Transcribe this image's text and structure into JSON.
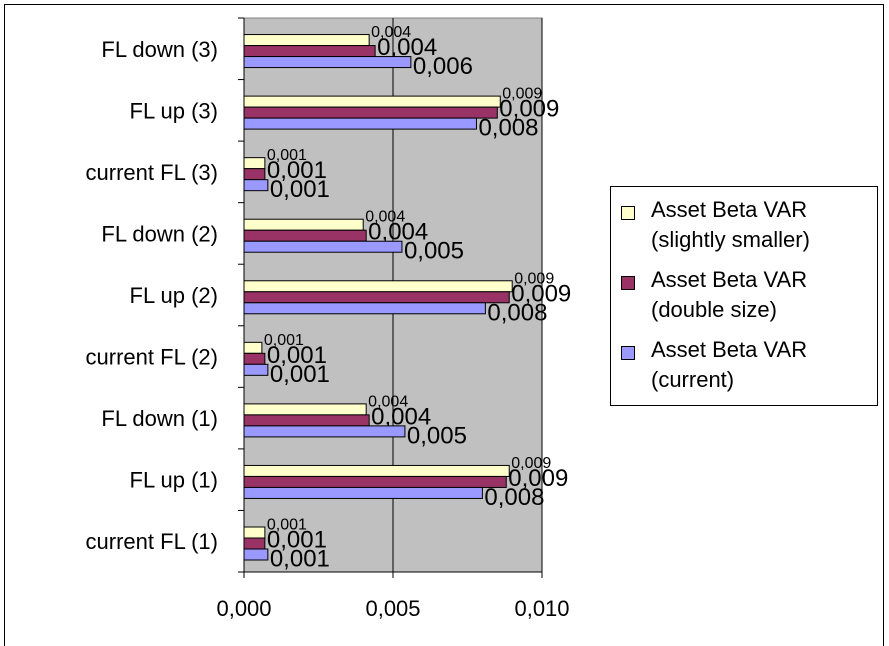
{
  "chart_data": {
    "type": "bar",
    "orientation": "horizontal",
    "categories": [
      "current FL (1)",
      "FL up (1)",
      "FL down (1)",
      "current FL (2)",
      "FL up (2)",
      "FL down (2)",
      "current FL (3)",
      "FL up (3)",
      "FL down (3)"
    ],
    "series": [
      {
        "name": "Asset Beta VAR (slightly smaller)",
        "values": [
          0.0007,
          0.0089,
          0.0041,
          0.0006,
          0.009,
          0.004,
          0.0007,
          0.0086,
          0.0042
        ],
        "labels": [
          "0,001",
          "0,009",
          "0,004",
          "0,001",
          "0,009",
          "0,004",
          "0,001",
          "0,009",
          "0,004"
        ]
      },
      {
        "name": "Asset Beta VAR (double size)",
        "values": [
          0.0007,
          0.0088,
          0.0042,
          0.0007,
          0.0089,
          0.0041,
          0.0007,
          0.0085,
          0.0044
        ],
        "labels": [
          "0,001",
          "0,009",
          "0,004",
          "0,001",
          "0,009",
          "0,004",
          "0,001",
          "0,009",
          "0,004"
        ]
      },
      {
        "name": "Asset Beta VAR (current)",
        "values": [
          0.0008,
          0.008,
          0.0054,
          0.0008,
          0.0081,
          0.0053,
          0.0008,
          0.0078,
          0.0056
        ],
        "labels": [
          "0,001",
          "0,008",
          "0,005",
          "0,001",
          "0,008",
          "0,005",
          "0,001",
          "0,008",
          "0,006"
        ]
      }
    ],
    "xlim": [
      0,
      0.01
    ],
    "xticks": [
      "0,000",
      "0,005",
      "0,010"
    ],
    "grid": true,
    "legend_position": "right",
    "colors": {
      "plot_background": "#c0c0c0",
      "series": [
        "#ffffcc",
        "#993366",
        "#9999ff"
      ]
    },
    "legend": [
      {
        "line1": "Asset Beta VAR",
        "line2": "(slightly smaller)"
      },
      {
        "line1": "Asset Beta VAR",
        "line2": "(double size)"
      },
      {
        "line1": "Asset Beta VAR",
        "line2": "(current)"
      }
    ]
  }
}
